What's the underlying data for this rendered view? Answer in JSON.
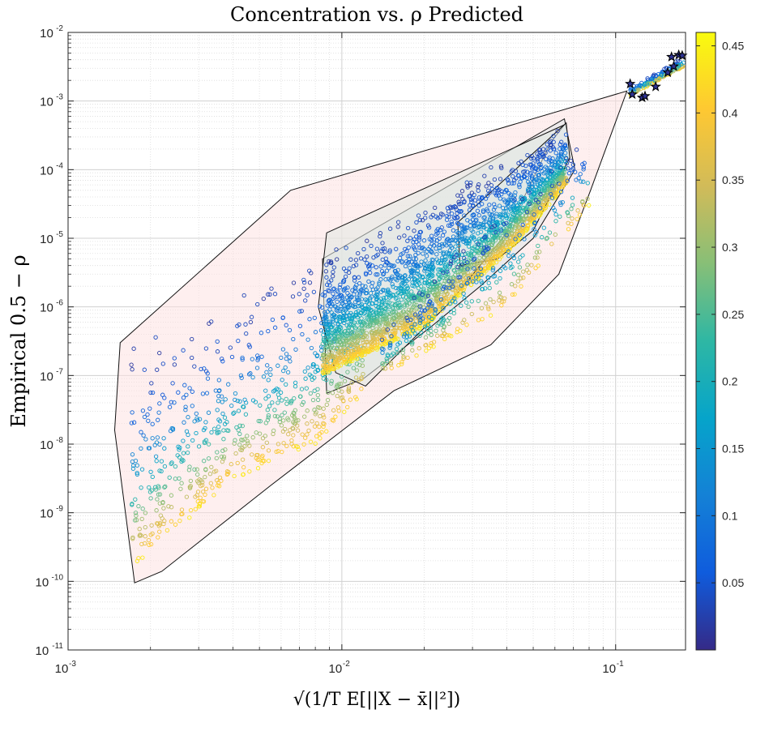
{
  "chart_data": {
    "type": "scatter",
    "title": "Concentration vs. ρ Predicted",
    "xlabel": "√(1/T E[||X − x̄||²])",
    "ylabel": "Empirical 0.5 − ρ",
    "xscale": "log",
    "yscale": "log",
    "xlim": [
      0.001,
      0.18
    ],
    "ylim": [
      1e-11,
      0.01
    ],
    "grid": true,
    "x_tick_labels": [
      {
        "base": "10",
        "exp": "-3"
      },
      {
        "base": "10",
        "exp": "-2"
      },
      {
        "base": "10",
        "exp": "-1"
      }
    ],
    "y_tick_labels": [
      {
        "base": "10",
        "exp": "-11"
      },
      {
        "base": "10",
        "exp": "-10"
      },
      {
        "base": "10",
        "exp": "-9"
      },
      {
        "base": "10",
        "exp": "-8"
      },
      {
        "base": "10",
        "exp": "-7"
      },
      {
        "base": "10",
        "exp": "-6"
      },
      {
        "base": "10",
        "exp": "-5"
      },
      {
        "base": "10",
        "exp": "-4"
      },
      {
        "base": "10",
        "exp": "-3"
      },
      {
        "base": "10",
        "exp": "-2"
      }
    ],
    "colorbar": {
      "label": "",
      "range": [
        0,
        0.46
      ],
      "ticks": [
        "0.05",
        "0.1",
        "0.15",
        "0.2",
        "0.25",
        "0.3",
        "0.35",
        "0.4",
        "0.45"
      ]
    },
    "hulls": [
      {
        "fill": "#fde0e0",
        "fill_opacity": 0.5,
        "points": [
          [
            0.00155,
            3e-07
          ],
          [
            0.00148,
            1.6e-08
          ],
          [
            0.00175,
            9.5e-11
          ],
          [
            0.0022,
            1.4e-10
          ],
          [
            0.0055,
            2.5e-09
          ],
          [
            0.0155,
            6e-08
          ],
          [
            0.035,
            2.8e-07
          ],
          [
            0.062,
            3e-06
          ],
          [
            0.081,
            5e-05
          ],
          [
            0.11,
            0.0014
          ],
          [
            0.0065,
            5e-05
          ],
          [
            0.00155,
            3e-07
          ]
        ]
      },
      {
        "fill": "#dfe5e8",
        "fill_opacity": 0.55,
        "points": [
          [
            0.0085,
            5e-06
          ],
          [
            0.0088,
            5.5e-08
          ],
          [
            0.012,
            9e-08
          ],
          [
            0.021,
            5e-07
          ],
          [
            0.032,
            2e-06
          ],
          [
            0.05,
            1e-05
          ],
          [
            0.071,
            0.0001
          ],
          [
            0.065,
            0.00055
          ],
          [
            0.0085,
            5e-06
          ]
        ]
      },
      {
        "fill": "#e0e8e2",
        "fill_opacity": 0.55,
        "points": [
          [
            0.0088,
            1.2e-05
          ],
          [
            0.0082,
            1e-06
          ],
          [
            0.0095,
            1.1e-07
          ],
          [
            0.0122,
            7e-08
          ],
          [
            0.025,
            1.2e-06
          ],
          [
            0.04,
            1.2e-05
          ],
          [
            0.058,
            0.00025
          ],
          [
            0.065,
            0.00045
          ],
          [
            0.0088,
            1.2e-05
          ]
        ]
      },
      {
        "fill": "#dde7e6",
        "fill_opacity": 0.55,
        "points": [
          [
            0.0265,
            1.7e-05
          ],
          [
            0.027,
            4e-06
          ],
          [
            0.037,
            5e-06
          ],
          [
            0.05,
            1.3e-05
          ],
          [
            0.068,
            0.00015
          ],
          [
            0.066,
            0.00048
          ],
          [
            0.0265,
            1.7e-05
          ]
        ]
      }
    ],
    "clusters": [
      {
        "name": "",
        "count": 700,
        "x_range": [
          0.0017,
          0.012
        ],
        "upper": [
          [
            0.0016,
            3e-07
          ],
          [
            0.004,
            1.5e-06
          ],
          [
            0.0065,
            5e-06
          ],
          [
            0.012,
            2e-05
          ]
        ],
        "lower": [
          [
            0.0017,
            1.5e-10
          ],
          [
            0.004,
            3e-09
          ],
          [
            0.008,
            1e-08
          ],
          [
            0.012,
            5e-08
          ]
        ],
        "skew": 0.5
      },
      {
        "name": "",
        "count": 2600,
        "x_range": [
          0.0085,
          0.066
        ],
        "upper": [
          [
            0.0085,
            5e-06
          ],
          [
            0.02,
            4e-05
          ],
          [
            0.04,
            0.00015
          ],
          [
            0.066,
            0.0005
          ]
        ],
        "lower": [
          [
            0.0085,
            1e-07
          ],
          [
            0.02,
            5e-07
          ],
          [
            0.04,
            6e-06
          ],
          [
            0.066,
            6e-05
          ]
        ],
        "skew": 0.45
      },
      {
        "name": "",
        "count": 350,
        "x_range": [
          0.014,
          0.08
        ],
        "upper": [
          [
            0.014,
            5e-07
          ],
          [
            0.04,
            3e-05
          ],
          [
            0.08,
            0.0003
          ]
        ],
        "lower": [
          [
            0.014,
            1e-07
          ],
          [
            0.04,
            1e-06
          ],
          [
            0.08,
            3e-05
          ]
        ],
        "skew": 0.7
      },
      {
        "name": "",
        "count": 160,
        "x_range": [
          0.113,
          0.178
        ],
        "upper": [
          [
            0.113,
            0.0016
          ],
          [
            0.178,
            0.0045
          ]
        ],
        "lower": [
          [
            0.113,
            0.0012
          ],
          [
            0.178,
            0.0032
          ]
        ],
        "skew": 0.5
      }
    ],
    "star_points": [
      {
        "x": 0.113,
        "y": 0.00178,
        "c": 0.01
      },
      {
        "x": 0.115,
        "y": 0.00125,
        "c": 0.01
      },
      {
        "x": 0.125,
        "y": 0.00112,
        "c": 0.01
      },
      {
        "x": 0.128,
        "y": 0.00118,
        "c": 0.01
      },
      {
        "x": 0.14,
        "y": 0.00162,
        "c": 0.01
      },
      {
        "x": 0.155,
        "y": 0.0026,
        "c": 0.01
      },
      {
        "x": 0.16,
        "y": 0.0044,
        "c": 0.01
      },
      {
        "x": 0.163,
        "y": 0.0032,
        "c": 0.01
      },
      {
        "x": 0.17,
        "y": 0.0047,
        "c": 0.01
      },
      {
        "x": 0.175,
        "y": 0.0046,
        "c": 0.01
      }
    ]
  }
}
